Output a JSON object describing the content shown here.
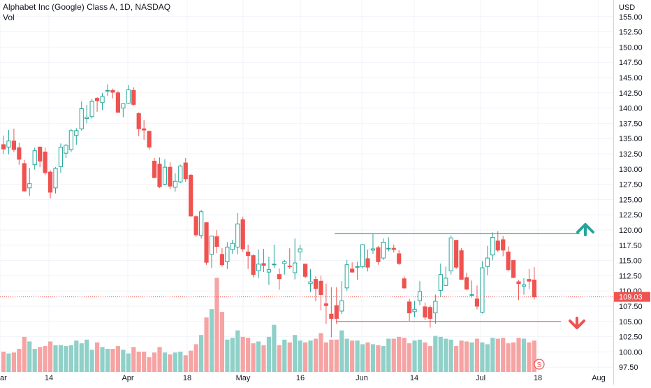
{
  "legend": {
    "title": "Alphabet Inc (Google) Class A, 1D, NASDAQ",
    "volume_label": "Vol"
  },
  "currency_label": "USD",
  "last_price_label": "109.03",
  "colors": {
    "up": "#26a69a",
    "down": "#ef5350",
    "vol_up": "#8fd0c8",
    "vol_down": "#f6a3a3",
    "grid": "#f0f3fa",
    "axis_text": "#787b86",
    "resistance_line": "#26a69a",
    "support_line": "#ef5350"
  },
  "icons": {
    "up_arrow": "arrow-up-icon",
    "down_arrow": "arrow-down-icon",
    "split_marker": "s-marker-icon"
  },
  "split_marker_text": "S",
  "chart_data": {
    "type": "candlestick",
    "title": "Alphabet Inc (Google) Class A, 1D, NASDAQ",
    "y_axis": {
      "label": "USD",
      "range": [
        97.5,
        155
      ],
      "ticks": [
        97.5,
        100,
        102.5,
        105,
        107.5,
        110,
        112.5,
        115,
        117.5,
        120,
        122.5,
        125,
        127.5,
        130,
        132.5,
        135,
        137.5,
        140,
        142.5,
        145,
        147.5,
        150,
        152.5,
        155
      ],
      "tick_labels": [
        "97.50",
        "100.00",
        "102.50",
        "105.00",
        "107.50",
        "110.00",
        "112.50",
        "115.00",
        "117.50",
        "120.00",
        "122.50",
        "125.00",
        "127.50",
        "130.00",
        "132.50",
        "135.00",
        "137.50",
        "140.00",
        "142.50",
        "145.00",
        "147.50",
        "150.00",
        "152.50",
        "155.00"
      ]
    },
    "x_axis": {
      "tick_labels": [
        "ar",
        "14",
        "Apr",
        "18",
        "May",
        "16",
        "Jun",
        "14",
        "Jul",
        "18",
        "Aug"
      ],
      "tick_positions": [
        "Mar 1",
        "Mar 14",
        "Apr 1",
        "Apr 18",
        "May 2",
        "May 16",
        "Jun 1",
        "Jun 14",
        "Jul 1",
        "Jul 18",
        "Aug 1"
      ]
    },
    "grid": true,
    "last_price": 109.03,
    "horizontal_lines": [
      {
        "name": "resistance",
        "value": 119.4,
        "from": "May 27",
        "to": "Jul 21"
      },
      {
        "name": "support",
        "value": 105.0,
        "from": "May 27",
        "to": "Jul 21"
      }
    ],
    "volume_bars": {
      "source": "Vol",
      "note": "relative volume, unscaled"
    },
    "candles": [
      {
        "date": "Mar 1",
        "open": 134.0,
        "high": 135.5,
        "low": 132.5,
        "close": 133.3
      },
      {
        "date": "Mar 2",
        "open": 133.6,
        "high": 136.4,
        "low": 132.4,
        "close": 134.6
      },
      {
        "date": "Mar 3",
        "open": 134.6,
        "high": 136.6,
        "low": 132.8,
        "close": 133.2
      },
      {
        "date": "Mar 4",
        "open": 133.5,
        "high": 134.3,
        "low": 130.7,
        "close": 131.6
      },
      {
        "date": "Mar 7",
        "open": 130.9,
        "high": 131.5,
        "low": 126.3,
        "close": 126.4
      },
      {
        "date": "Mar 8",
        "open": 126.9,
        "high": 130.2,
        "low": 125.6,
        "close": 127.6
      },
      {
        "date": "Mar 9",
        "open": 130.7,
        "high": 133.5,
        "low": 129.9,
        "close": 133.0
      },
      {
        "date": "Mar 10",
        "open": 133.6,
        "high": 133.7,
        "low": 130.3,
        "close": 131.3
      },
      {
        "date": "Mar 11",
        "open": 132.8,
        "high": 133.5,
        "low": 129.0,
        "close": 129.4
      },
      {
        "date": "Mar 14",
        "open": 129.5,
        "high": 129.8,
        "low": 125.2,
        "close": 126.2
      },
      {
        "date": "Mar 15",
        "open": 126.9,
        "high": 130.3,
        "low": 126.0,
        "close": 130.1
      },
      {
        "date": "Mar 16",
        "open": 130.4,
        "high": 134.2,
        "low": 129.4,
        "close": 133.6
      },
      {
        "date": "Mar 17",
        "open": 132.6,
        "high": 134.1,
        "low": 131.8,
        "close": 133.9
      },
      {
        "date": "Mar 18",
        "open": 133.2,
        "high": 136.6,
        "low": 132.8,
        "close": 136.3
      },
      {
        "date": "Mar 21",
        "open": 135.5,
        "high": 136.7,
        "low": 134.0,
        "close": 136.3
      },
      {
        "date": "Mar 22",
        "open": 136.6,
        "high": 141.1,
        "low": 136.3,
        "close": 139.9
      },
      {
        "date": "Mar 23",
        "open": 138.3,
        "high": 140.5,
        "low": 137.5,
        "close": 138.5
      },
      {
        "date": "Mar 24",
        "open": 138.6,
        "high": 141.5,
        "low": 138.3,
        "close": 141.1
      },
      {
        "date": "Mar 25",
        "open": 141.6,
        "high": 141.8,
        "low": 139.4,
        "close": 141.2
      },
      {
        "date": "Mar 28",
        "open": 140.9,
        "high": 142.5,
        "low": 139.7,
        "close": 141.9
      },
      {
        "date": "Mar 29",
        "open": 142.9,
        "high": 143.9,
        "low": 142.0,
        "close": 142.9
      },
      {
        "date": "Mar 30",
        "open": 142.9,
        "high": 143.2,
        "low": 141.6,
        "close": 142.6
      },
      {
        "date": "Mar 31",
        "open": 142.5,
        "high": 142.8,
        "low": 139.3,
        "close": 139.3
      },
      {
        "date": "Apr 1",
        "open": 140.0,
        "high": 140.7,
        "low": 138.5,
        "close": 140.7
      },
      {
        "date": "Apr 4",
        "open": 140.8,
        "high": 143.8,
        "low": 140.7,
        "close": 143.0
      },
      {
        "date": "Apr 5",
        "open": 142.9,
        "high": 143.4,
        "low": 140.4,
        "close": 140.6
      },
      {
        "date": "Apr 6",
        "open": 139.1,
        "high": 139.3,
        "low": 135.4,
        "close": 136.6
      },
      {
        "date": "Apr 7",
        "open": 136.6,
        "high": 138.0,
        "low": 134.8,
        "close": 136.4
      },
      {
        "date": "Apr 8",
        "open": 136.2,
        "high": 136.3,
        "low": 133.2,
        "close": 133.6
      },
      {
        "date": "Apr 11",
        "open": 131.3,
        "high": 131.8,
        "low": 128.5,
        "close": 128.6
      },
      {
        "date": "Apr 12",
        "open": 130.8,
        "high": 131.9,
        "low": 126.9,
        "close": 127.1
      },
      {
        "date": "Apr 13",
        "open": 127.5,
        "high": 131.6,
        "low": 127.3,
        "close": 130.3
      },
      {
        "date": "Apr 14",
        "open": 130.3,
        "high": 131.1,
        "low": 126.7,
        "close": 127.2
      },
      {
        "date": "Apr 18",
        "open": 127.0,
        "high": 129.3,
        "low": 126.3,
        "close": 128.0
      },
      {
        "date": "Apr 19",
        "open": 127.9,
        "high": 130.7,
        "low": 127.7,
        "close": 130.5
      },
      {
        "date": "Apr 20",
        "open": 131.0,
        "high": 131.8,
        "low": 127.9,
        "close": 128.4
      },
      {
        "date": "Apr 21",
        "open": 129.0,
        "high": 129.2,
        "low": 122.2,
        "close": 122.3
      },
      {
        "date": "Apr 22",
        "open": 122.2,
        "high": 122.4,
        "low": 118.9,
        "close": 119.2
      },
      {
        "date": "Apr 25",
        "open": 119.1,
        "high": 123.3,
        "low": 118.6,
        "close": 123.0
      },
      {
        "date": "Apr 26",
        "open": 121.2,
        "high": 121.3,
        "low": 114.3,
        "close": 114.7
      },
      {
        "date": "Apr 27",
        "open": 116.0,
        "high": 118.6,
        "low": 113.8,
        "close": 119.0
      },
      {
        "date": "Apr 28",
        "open": 118.9,
        "high": 120.0,
        "low": 116.2,
        "close": 117.3
      },
      {
        "date": "Apr 29",
        "open": 116.0,
        "high": 117.0,
        "low": 114.0,
        "close": 114.3
      },
      {
        "date": "May 2",
        "open": 114.8,
        "high": 118.0,
        "low": 113.6,
        "close": 117.2
      },
      {
        "date": "May 3",
        "open": 116.8,
        "high": 118.4,
        "low": 116.1,
        "close": 117.8
      },
      {
        "date": "May 4",
        "open": 117.2,
        "high": 122.8,
        "low": 116.0,
        "close": 121.0
      },
      {
        "date": "May 5",
        "open": 121.7,
        "high": 122.2,
        "low": 116.4,
        "close": 116.9
      },
      {
        "date": "May 6",
        "open": 116.4,
        "high": 117.6,
        "low": 113.6,
        "close": 115.8
      },
      {
        "date": "May 9",
        "open": 115.8,
        "high": 116.0,
        "low": 112.2,
        "close": 112.7
      },
      {
        "date": "May 10",
        "open": 113.3,
        "high": 116.8,
        "low": 112.1,
        "close": 114.4
      },
      {
        "date": "May 11",
        "open": 114.5,
        "high": 116.9,
        "low": 113.1,
        "close": 114.2
      },
      {
        "date": "May 12",
        "open": 113.1,
        "high": 115.6,
        "low": 111.0,
        "close": 113.5
      },
      {
        "date": "May 13",
        "open": 114.3,
        "high": 117.6,
        "low": 113.8,
        "close": 114.4
      },
      {
        "date": "May 16",
        "open": 112.7,
        "high": 113.7,
        "low": 110.2,
        "close": 112.0
      },
      {
        "date": "May 17",
        "open": 114.5,
        "high": 115.1,
        "low": 112.7,
        "close": 114.8
      },
      {
        "date": "May 18",
        "open": 114.1,
        "high": 117.0,
        "low": 113.6,
        "close": 114.0
      },
      {
        "date": "May 19",
        "open": 113.0,
        "high": 118.6,
        "low": 111.9,
        "close": 114.6
      },
      {
        "date": "May 20",
        "open": 116.4,
        "high": 117.6,
        "low": 115.0,
        "close": 116.9
      },
      {
        "date": "May 23",
        "open": 114.4,
        "high": 114.5,
        "low": 112.1,
        "close": 112.4
      },
      {
        "date": "May 24",
        "open": 111.2,
        "high": 113.6,
        "low": 109.8,
        "close": 111.5
      },
      {
        "date": "May 25",
        "open": 111.9,
        "high": 112.4,
        "low": 108.3,
        "close": 110.4
      },
      {
        "date": "May 26",
        "open": 111.6,
        "high": 112.5,
        "low": 106.8,
        "close": 109.4
      },
      {
        "date": "May 27",
        "open": 107.9,
        "high": 111.2,
        "low": 104.6,
        "close": 107.6
      },
      {
        "date": "May 31",
        "open": 106.2,
        "high": 110.6,
        "low": 102.4,
        "close": 105.5
      },
      {
        "date": "Jun 1",
        "open": 107.6,
        "high": 110.6,
        "low": 104.6,
        "close": 105.5
      },
      {
        "date": "Jun 2",
        "open": 106.7,
        "high": 111.6,
        "low": 106.2,
        "close": 108.4
      },
      {
        "date": "Jun 3",
        "open": 110.5,
        "high": 115.1,
        "low": 110.0,
        "close": 114.3
      },
      {
        "date": "Jun 6",
        "open": 113.6,
        "high": 114.7,
        "low": 113.0,
        "close": 113.1
      },
      {
        "date": "Jun 7",
        "open": 114.0,
        "high": 114.8,
        "low": 111.8,
        "close": 114.0
      },
      {
        "date": "Jun 8",
        "open": 114.0,
        "high": 117.6,
        "low": 113.7,
        "close": 117.6
      },
      {
        "date": "Jun 9",
        "open": 115.3,
        "high": 116.8,
        "low": 113.2,
        "close": 113.9
      },
      {
        "date": "Jun 10",
        "open": 116.7,
        "high": 119.4,
        "low": 116.1,
        "close": 116.9
      },
      {
        "date": "Jun 13",
        "open": 117.1,
        "high": 117.4,
        "low": 114.3,
        "close": 114.8
      },
      {
        "date": "Jun 14",
        "open": 115.4,
        "high": 118.6,
        "low": 115.1,
        "close": 118.0
      },
      {
        "date": "Jun 15",
        "open": 116.9,
        "high": 118.8,
        "low": 116.5,
        "close": 117.0
      },
      {
        "date": "Jun 16",
        "open": 117.0,
        "high": 117.6,
        "low": 116.3,
        "close": 116.8
      },
      {
        "date": "Jun 17",
        "open": 116.1,
        "high": 116.7,
        "low": 114.3,
        "close": 114.5
      },
      {
        "date": "Jun 21",
        "open": 112.0,
        "high": 112.4,
        "low": 110.3,
        "close": 110.5
      },
      {
        "date": "Jun 22",
        "open": 108.2,
        "high": 108.7,
        "low": 105.1,
        "close": 106.4
      },
      {
        "date": "Jun 23",
        "open": 106.6,
        "high": 108.4,
        "low": 105.7,
        "close": 107.0
      },
      {
        "date": "Jun 24",
        "open": 108.4,
        "high": 111.6,
        "low": 107.7,
        "close": 109.9
      },
      {
        "date": "Jun 27",
        "open": 107.4,
        "high": 108.1,
        "low": 105.2,
        "close": 105.7
      },
      {
        "date": "Jun 28",
        "open": 107.3,
        "high": 107.6,
        "low": 104.0,
        "close": 105.5
      },
      {
        "date": "Jun 29",
        "open": 106.4,
        "high": 109.4,
        "low": 104.6,
        "close": 108.3
      },
      {
        "date": "Jun 30",
        "open": 110.1,
        "high": 114.5,
        "low": 109.0,
        "close": 112.7
      },
      {
        "date": "Jul 1",
        "open": 110.9,
        "high": 114.0,
        "low": 110.8,
        "close": 112.1
      },
      {
        "date": "Jul 5",
        "open": 113.3,
        "high": 119.1,
        "low": 112.7,
        "close": 118.7
      },
      {
        "date": "Jul 6",
        "open": 118.3,
        "high": 118.4,
        "low": 113.6,
        "close": 113.9
      },
      {
        "date": "Jul 7",
        "open": 116.6,
        "high": 117.0,
        "low": 111.9,
        "close": 111.9
      },
      {
        "date": "Jul 8",
        "open": 112.2,
        "high": 113.0,
        "low": 110.1,
        "close": 110.3
      },
      {
        "date": "Jul 11",
        "open": 109.3,
        "high": 111.7,
        "low": 108.9,
        "close": 109.4
      },
      {
        "date": "Jul 12",
        "open": 108.7,
        "high": 110.9,
        "low": 107.0,
        "close": 107.5
      },
      {
        "date": "Jul 13",
        "open": 106.5,
        "high": 114.9,
        "low": 106.3,
        "close": 113.8
      },
      {
        "date": "Jul 14",
        "open": 114.0,
        "high": 117.4,
        "low": 112.6,
        "close": 115.4
      },
      {
        "date": "Jul 15",
        "open": 115.9,
        "high": 119.6,
        "low": 115.0,
        "close": 118.8
      },
      {
        "date": "Jul 18",
        "open": 118.2,
        "high": 119.8,
        "low": 116.4,
        "close": 116.7
      },
      {
        "date": "Jul 19",
        "open": 118.4,
        "high": 119.0,
        "low": 115.7,
        "close": 116.7
      },
      {
        "date": "Jul 20",
        "open": 116.4,
        "high": 117.3,
        "low": 113.3,
        "close": 113.5
      },
      {
        "date": "Jul 21",
        "open": 115.0,
        "high": 115.0,
        "low": 112.2,
        "close": 112.2
      },
      {
        "date": "Jul 22",
        "open": 111.5,
        "high": 111.8,
        "low": 108.5,
        "close": 111.2
      },
      {
        "date": "Jul 25",
        "open": 110.8,
        "high": 112.1,
        "low": 109.4,
        "close": 111.0
      },
      {
        "date": "Jul 26",
        "open": 111.9,
        "high": 113.6,
        "low": 110.3,
        "close": 111.6
      },
      {
        "date": "Jul 27",
        "open": 111.8,
        "high": 113.9,
        "low": 108.6,
        "close": 109.03
      }
    ],
    "volumes": [
      22,
      20,
      21,
      25,
      38,
      33,
      25,
      27,
      28,
      33,
      29,
      29,
      28,
      29,
      34,
      31,
      35,
      24,
      32,
      27,
      25,
      25,
      28,
      24,
      20,
      27,
      22,
      22,
      16,
      21,
      27,
      21,
      19,
      21,
      22,
      18,
      23,
      30,
      40,
      59,
      68,
      102,
      65,
      35,
      37,
      45,
      38,
      37,
      31,
      33,
      29,
      38,
      51,
      29,
      35,
      32,
      40,
      34,
      32,
      34,
      36,
      42,
      32,
      35,
      35,
      45,
      36,
      34,
      34,
      30,
      32,
      30,
      29,
      28,
      36,
      36,
      38,
      37,
      31,
      34,
      35,
      32,
      28,
      39,
      38,
      36,
      35,
      28,
      34,
      33,
      32,
      36,
      32,
      30,
      37,
      36,
      37,
      31,
      32,
      37,
      36,
      32,
      34
    ]
  }
}
